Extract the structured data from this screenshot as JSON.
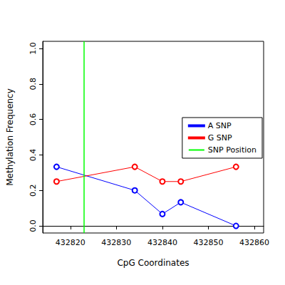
{
  "chart_data": {
    "type": "line",
    "x_label": "CpG Coordinates",
    "y_label": "Methylation Frequency",
    "x": [
      432817,
      432834,
      432840,
      432844,
      432856
    ],
    "series": [
      {
        "name": "A SNP",
        "color": "#0000ff",
        "marker": "circle-open",
        "line_style": "solid",
        "values": [
          0.333,
          0.2,
          0.067,
          0.133,
          0.0
        ]
      },
      {
        "name": "G SNP",
        "color": "#ff0000",
        "marker": "circle-open",
        "line_style": "solid",
        "values": [
          0.25,
          0.333,
          0.25,
          0.25,
          0.333
        ]
      }
    ],
    "vlines": [
      {
        "name": "SNP Position",
        "x": 432823,
        "color": "#00ff00"
      }
    ],
    "xlim": [
      432814,
      432862
    ],
    "xticks": [
      432820,
      432830,
      432840,
      432850,
      432860
    ],
    "ylim": [
      -0.04,
      1.04
    ],
    "yticks": [
      {
        "value": 0,
        "label": "0.0"
      },
      0.2,
      0.4,
      0.6,
      0.8,
      {
        "value": 1,
        "label": "1.0"
      }
    ],
    "grid": false,
    "legend": "right"
  }
}
